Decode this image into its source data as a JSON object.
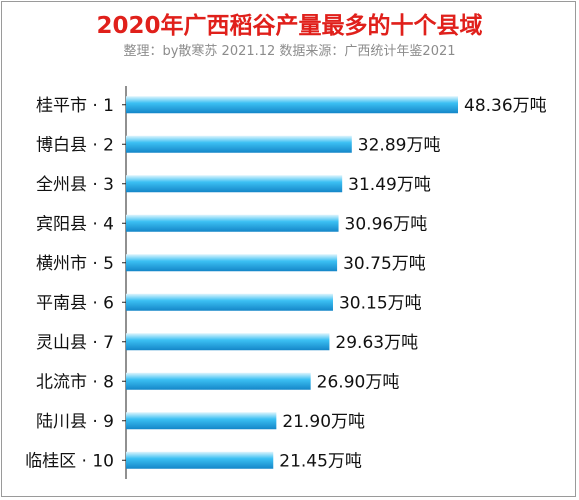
{
  "title": "2020年广西稻谷产量最多的十个县域",
  "subtitle": "整理：by散寒苏 2021.12 数据来源：广西统计年鉴2021",
  "colors": {
    "title": "#e0201b",
    "bar_light": "#d8f2fc",
    "bar_mid": "#29b6f0",
    "bar_dark": "#1486c8",
    "axis": "#222222"
  },
  "chart_data": {
    "type": "bar",
    "orientation": "horizontal",
    "title": "2020年广西稻谷产量最多的十个县域",
    "categories": [
      "桂平市 · 1",
      "博白县 · 2",
      "全州县 · 3",
      "宾阳县 · 4",
      "横州市 · 5",
      "平南县 · 6",
      "灵山县 · 7",
      "北流市 · 8",
      "陆川县 · 9",
      "临桂区 · 10"
    ],
    "values": [
      48.36,
      32.89,
      31.49,
      30.96,
      30.75,
      30.15,
      29.63,
      26.9,
      21.9,
      21.45
    ],
    "value_labels": [
      "48.36万吨",
      "32.89万吨",
      "31.49万吨",
      "30.96万吨",
      "30.75万吨",
      "30.15万吨",
      "29.63万吨",
      "26.90万吨",
      "21.90万吨",
      "21.45万吨"
    ],
    "xlim": [
      0,
      48.36
    ],
    "grid": false,
    "legend": "none"
  }
}
